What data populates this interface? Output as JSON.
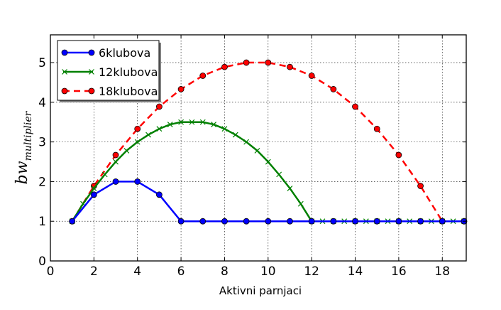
{
  "chart_data": {
    "type": "line",
    "title": "",
    "xlabel": "Aktivni parnjaci",
    "ylabel": "bw",
    "ylabel_subscript": "multiplier",
    "xlim": [
      0,
      19.1
    ],
    "ylim": [
      0,
      5.7
    ],
    "xticks": [
      0,
      2,
      4,
      6,
      8,
      10,
      12,
      14,
      16,
      18
    ],
    "yticks": [
      0,
      1,
      2,
      3,
      4,
      5
    ],
    "grid": true,
    "legend_position": "top-left",
    "series": [
      {
        "name": "6klubova",
        "color": "#0000ff",
        "dash": "solid",
        "marker": "circle",
        "x": [
          1,
          2,
          3,
          4,
          5,
          6,
          7,
          8,
          9,
          10,
          11,
          12,
          13,
          14,
          15,
          16,
          17,
          18,
          19
        ],
        "y": [
          1.0,
          1.67,
          2.0,
          2.0,
          1.67,
          1.0,
          1.0,
          1.0,
          1.0,
          1.0,
          1.0,
          1.0,
          1.0,
          1.0,
          1.0,
          1.0,
          1.0,
          1.0,
          1.0
        ]
      },
      {
        "name": "12klubova",
        "color": "#008000",
        "dash": "solid",
        "marker": "x",
        "x": [
          1,
          1.5,
          2,
          2.5,
          3,
          3.5,
          4,
          4.5,
          5,
          5.5,
          6,
          6.5,
          7,
          7.5,
          8,
          8.5,
          9,
          9.5,
          10,
          10.5,
          11,
          11.5,
          12,
          12.5,
          13,
          13.5,
          14,
          14.5,
          15,
          15.5,
          16,
          16.5,
          17,
          17.5,
          18,
          18.5,
          19
        ],
        "y": [
          1.0,
          1.44,
          1.83,
          2.18,
          2.5,
          2.78,
          3.0,
          3.18,
          3.33,
          3.44,
          3.5,
          3.5,
          3.5,
          3.44,
          3.33,
          3.18,
          3.0,
          2.78,
          2.5,
          2.18,
          1.83,
          1.44,
          1.0,
          1.0,
          1.0,
          1.0,
          1.0,
          1.0,
          1.0,
          1.0,
          1.0,
          1.0,
          1.0,
          1.0,
          1.0,
          1.0,
          1.0
        ]
      },
      {
        "name": "18klubova",
        "color": "#ff0000",
        "dash": "dashed",
        "marker": "circle",
        "x": [
          1,
          2,
          3,
          4,
          5,
          6,
          7,
          8,
          9,
          10,
          11,
          12,
          13,
          14,
          15,
          16,
          17,
          18,
          19
        ],
        "y": [
          1.0,
          1.89,
          2.67,
          3.33,
          3.89,
          4.33,
          4.67,
          4.89,
          5.0,
          5.0,
          4.89,
          4.67,
          4.33,
          3.89,
          3.33,
          2.67,
          1.89,
          1.0,
          1.0
        ]
      }
    ]
  }
}
